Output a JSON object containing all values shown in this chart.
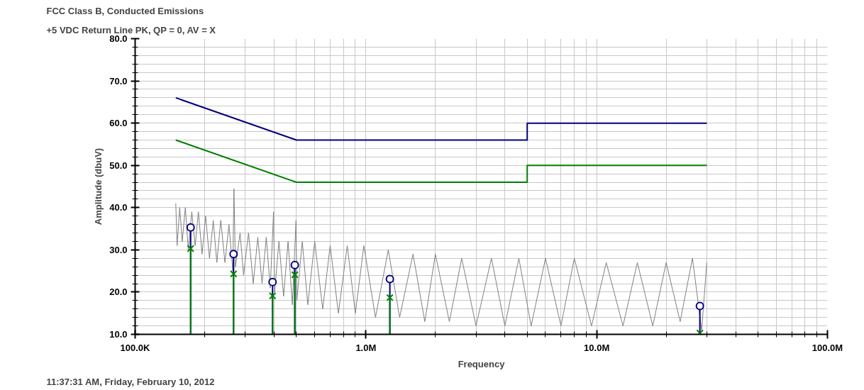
{
  "chart_data": {
    "type": "line",
    "title": "FCC  Class B, Conducted Emissions",
    "subtitle": "+5 VDC Return Line PK, QP = 0, AV = X",
    "xlabel": "Frequency",
    "ylabel": "Amplitude (dbuV)",
    "annotations": [
      "11:37:31 AM, Friday, February 10, 2012"
    ],
    "log": "x",
    "grid": true,
    "xlim": [
      100000,
      100000000
    ],
    "xticks": [
      {
        "value": 100000,
        "label": "100.0K"
      },
      {
        "value": 1000000,
        "label": "1.0M"
      },
      {
        "value": 10000000,
        "label": "10.0M"
      },
      {
        "value": 100000000,
        "label": "100.0M"
      }
    ],
    "ylim": [
      10,
      80
    ],
    "yticks": [
      {
        "value": 10,
        "label": "10.0"
      },
      {
        "value": 20,
        "label": "20.0"
      },
      {
        "value": 30,
        "label": "30.0"
      },
      {
        "value": 40,
        "label": "40.0"
      },
      {
        "value": 50,
        "label": "50.0"
      },
      {
        "value": 60,
        "label": "60.0"
      },
      {
        "value": 70,
        "label": "70.0"
      },
      {
        "value": 80,
        "label": "80.0"
      }
    ],
    "series": [
      {
        "color": "#808080",
        "marker": "none",
        "x": [
          150000,
          152000,
          156000,
          160000,
          165000,
          170000,
          176000,
          182000,
          188000,
          195000,
          202000,
          210000,
          218000,
          226000,
          235000,
          245000,
          255000,
          265000,
          268000,
          272000,
          285000,
          295000,
          310000,
          325000,
          340000,
          355000,
          370000,
          385000,
          398000,
          402000,
          420000,
          440000,
          460000,
          480000,
          498000,
          502000,
          530000,
          560000,
          600000,
          650000,
          700000,
          760000,
          830000,
          900000,
          980000,
          1100000,
          1250000,
          1400000,
          1600000,
          1800000,
          2000000,
          2300000,
          2600000,
          3000000,
          3500000,
          4000000,
          4600000,
          5200000,
          6000000,
          7000000,
          8000000,
          9500000,
          11000000,
          13000000,
          15000000,
          17500000,
          20000000,
          23000000,
          26000000,
          28500000,
          30000000
        ],
        "values": [
          41,
          31,
          40,
          32,
          40,
          30,
          39,
          31,
          39,
          29,
          38,
          28,
          37,
          27,
          37,
          27,
          36,
          25,
          44.5,
          26,
          34,
          24,
          34,
          22,
          33,
          22,
          33,
          21,
          39,
          20,
          32,
          19,
          32,
          17,
          37,
          18,
          32,
          17,
          32,
          16,
          31,
          15,
          31,
          15,
          31,
          14,
          30,
          14,
          29,
          13,
          29,
          13,
          28,
          12,
          28,
          12,
          28,
          12,
          28,
          12,
          28,
          12,
          27,
          12,
          27,
          12,
          27,
          13,
          28,
          11,
          27
        ]
      },
      {
        "color": "#000080",
        "marker": "none",
        "x": [
          150000,
          500000,
          5000000,
          5000000,
          30000000
        ],
        "values": [
          66,
          56,
          56,
          60,
          60
        ]
      },
      {
        "color": "#008000",
        "marker": "none",
        "x": [
          150000,
          500000,
          5000000,
          5000000,
          30000000
        ],
        "values": [
          56,
          46,
          46,
          50,
          50
        ]
      },
      {
        "type": "lollipop",
        "color": "#000080",
        "marker": "circle",
        "x": [
          174000,
          267000,
          394000,
          492000,
          1270000,
          28000000
        ],
        "values": [
          35.3,
          29.0,
          22.4,
          26.4,
          23.1,
          16.7
        ]
      },
      {
        "type": "lollipop",
        "color": "#008000",
        "marker": "cross",
        "x": [
          174000,
          267000,
          394000,
          492000,
          1270000,
          28000000
        ],
        "values": [
          30.3,
          24.3,
          19.1,
          24.1,
          18.7,
          10.3
        ]
      }
    ]
  }
}
